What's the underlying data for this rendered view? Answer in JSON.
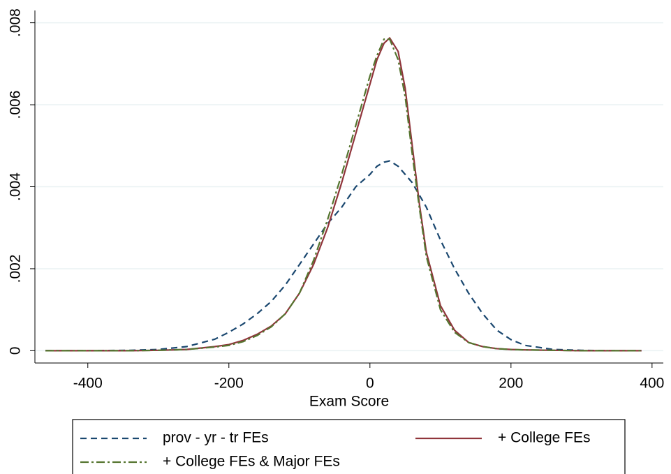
{
  "chart_data": {
    "type": "line",
    "xlabel": "Exam Score",
    "x": [
      -460,
      -400,
      -340,
      -300,
      -260,
      -220,
      -200,
      -180,
      -160,
      -140,
      -120,
      -100,
      -80,
      -60,
      -40,
      -20,
      0,
      10,
      20,
      28,
      40,
      50,
      60,
      70,
      80,
      100,
      120,
      140,
      160,
      180,
      200,
      220,
      260,
      300,
      340,
      385
    ],
    "series": [
      {
        "name": "prov - yr - tr FEs",
        "color": "#1a476f",
        "dash": "9,6",
        "values": [
          0,
          0,
          1e-05,
          3e-05,
          0.0001,
          0.00028,
          0.00045,
          0.00065,
          0.0009,
          0.0012,
          0.0016,
          0.0021,
          0.0026,
          0.0031,
          0.0035,
          0.004,
          0.0043,
          0.0045,
          0.0046,
          0.00463,
          0.0045,
          0.0043,
          0.0041,
          0.0038,
          0.0035,
          0.0027,
          0.002,
          0.0014,
          0.0009,
          0.0005,
          0.00027,
          0.00013,
          3e-05,
          1e-05,
          0,
          0
        ]
      },
      {
        "name": "+ College FEs",
        "color": "#90353b",
        "dash": "none",
        "values": [
          0,
          0,
          0,
          1e-05,
          3e-05,
          0.0001,
          0.00015,
          0.00025,
          0.0004,
          0.0006,
          0.0009,
          0.0014,
          0.0021,
          0.003,
          0.0041,
          0.0053,
          0.0065,
          0.0071,
          0.0075,
          0.00763,
          0.0073,
          0.0064,
          0.005,
          0.0036,
          0.0024,
          0.0011,
          0.0005,
          0.0002,
          0.0001,
          5e-05,
          3e-05,
          2e-05,
          1e-05,
          0,
          0,
          0
        ]
      },
      {
        "name": "+ College FEs & Major FEs",
        "color": "#55752f",
        "dash": "12,4,3,4",
        "values": [
          0,
          0,
          0,
          1e-05,
          3e-05,
          9e-05,
          0.00013,
          0.00022,
          0.00037,
          0.00058,
          0.0009,
          0.0014,
          0.0022,
          0.0032,
          0.0043,
          0.0055,
          0.0067,
          0.0072,
          0.0076,
          0.0076,
          0.0071,
          0.0062,
          0.0048,
          0.0035,
          0.0023,
          0.001,
          0.00045,
          0.0002,
          0.0001,
          5e-05,
          3e-05,
          2e-05,
          1e-05,
          0,
          0,
          0
        ]
      }
    ],
    "xlim": [
      -475,
      416
    ],
    "xticks": [
      -400,
      -200,
      0,
      200,
      400
    ],
    "ylim": [
      -0.0003,
      0.0083
    ],
    "yticks": [
      0,
      {
        "value": 0.002,
        "label": ".002"
      },
      {
        "value": 0.004,
        "label": ".004"
      },
      {
        "value": 0.006,
        "label": ".006"
      },
      {
        "value": 0.008,
        "label": ".008"
      }
    ],
    "grid": true,
    "legend_position": "bottom"
  }
}
